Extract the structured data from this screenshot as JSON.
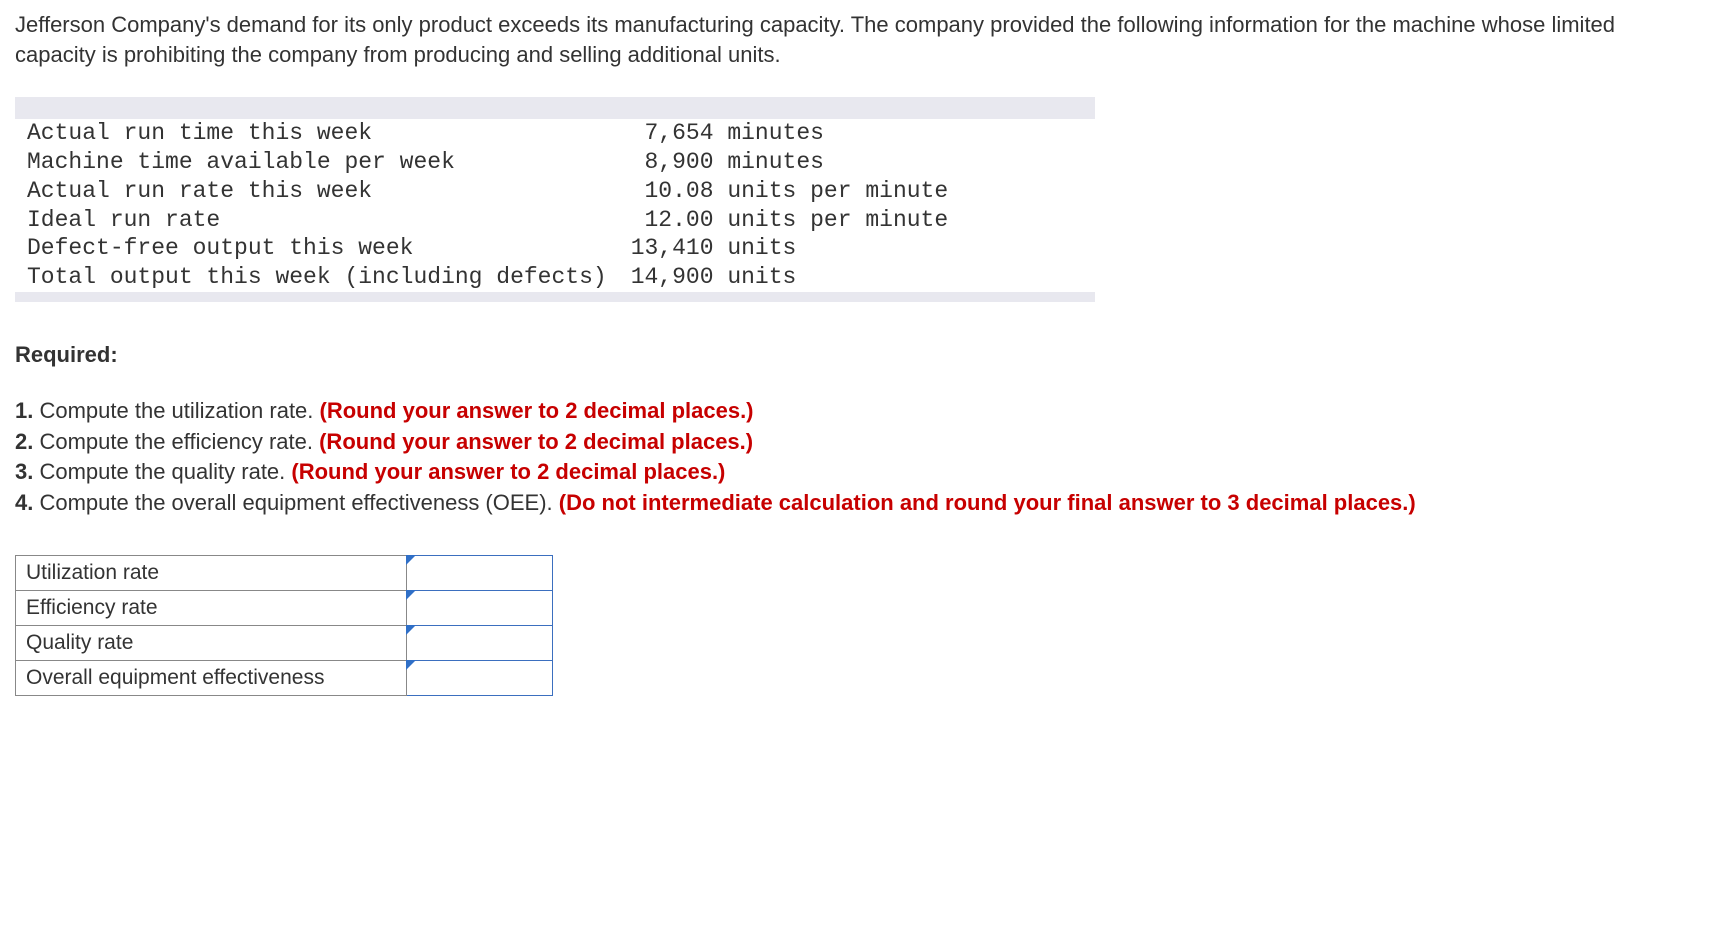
{
  "intro": "Jefferson Company's demand for its only product exceeds its manufacturing capacity. The company provided the following information for the machine whose limited capacity is prohibiting the company from producing and selling additional units.",
  "data_rows": [
    {
      "label": "Actual run time this week",
      "value": " 7,654 minutes"
    },
    {
      "label": "Machine time available per week",
      "value": " 8,900 minutes"
    },
    {
      "label": "Actual run rate this week",
      "value": " 10.08 units per minute"
    },
    {
      "label": "Ideal run rate",
      "value": " 12.00 units per minute"
    },
    {
      "label": "Defect-free output this week",
      "value": "13,410 units"
    },
    {
      "label": "Total output this week (including defects)",
      "value": "14,900 units"
    }
  ],
  "required_heading": "Required:",
  "requirements": [
    {
      "num": "1.",
      "text": "Compute the utilization rate. ",
      "red": "(Round your answer to 2 decimal places.)"
    },
    {
      "num": "2.",
      "text": "Compute the efficiency rate. ",
      "red": "(Round your answer to 2 decimal places.)"
    },
    {
      "num": "3.",
      "text": "Compute the quality rate. ",
      "red": "(Round your answer to 2 decimal places.)"
    },
    {
      "num": "4.",
      "text": "Compute the overall equipment effectiveness (OEE). ",
      "red": "(Do not intermediate calculation and round your final answer to 3 decimal places.)"
    }
  ],
  "answers": [
    {
      "label": "Utilization rate",
      "value": ""
    },
    {
      "label": "Efficiency rate",
      "value": ""
    },
    {
      "label": "Quality rate",
      "value": ""
    },
    {
      "label": "Overall equipment effectiveness",
      "value": ""
    }
  ]
}
